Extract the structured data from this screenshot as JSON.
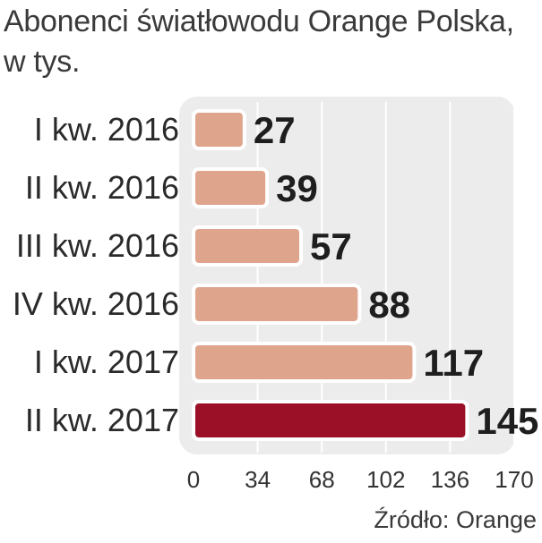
{
  "chart_data": {
    "type": "bar",
    "orientation": "horizontal",
    "title": "Abonenci światłowodu Orange Polska, w tys.",
    "categories": [
      "I kw. 2016",
      "II kw. 2016",
      "III kw. 2016",
      "IV kw. 2016",
      "I kw. 2017",
      "II kw. 2017"
    ],
    "values": [
      27,
      39,
      57,
      88,
      117,
      145
    ],
    "xlim": [
      0,
      170
    ],
    "xticks": [
      "0",
      "34",
      "68",
      "102",
      "136",
      "170"
    ],
    "grid": true,
    "colors": {
      "bar": "#dfa48c",
      "highlight": "#9c1027",
      "bar_stroke": "#ffffff",
      "panel": "#ececec",
      "text": "#2a2a2a"
    },
    "highlight_index": 5,
    "source": "Źródło: Orange"
  }
}
